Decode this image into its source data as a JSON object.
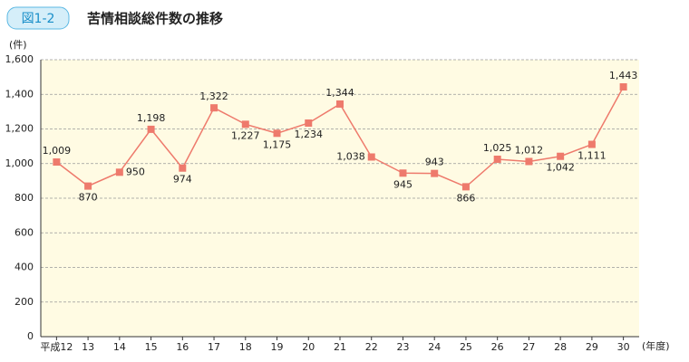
{
  "chart_data": {
    "type": "line",
    "figure_number": "図1-2",
    "title": "苦情相談総件数の推移",
    "y_label": "(件)",
    "x_label": "(年度)",
    "categories": [
      "平成12",
      "13",
      "14",
      "15",
      "16",
      "17",
      "18",
      "19",
      "20",
      "21",
      "22",
      "23",
      "24",
      "25",
      "26",
      "27",
      "28",
      "29",
      "30"
    ],
    "values": [
      1009,
      870,
      950,
      1198,
      974,
      1322,
      1227,
      1175,
      1234,
      1344,
      1038,
      945,
      943,
      866,
      1025,
      1012,
      1042,
      1111,
      1443
    ],
    "value_labels": [
      "1,009",
      "870",
      "950",
      "1,198",
      "974",
      "1,322",
      "1,227",
      "1,175",
      "1,234",
      "1,344",
      "1,038",
      "945",
      "943",
      "866",
      "1,025",
      "1,012",
      "1,042",
      "1,111",
      "1,443"
    ],
    "color": "#ee7a6c",
    "ylim": [
      0,
      1600
    ],
    "yticks": [
      0,
      200,
      400,
      600,
      800,
      {
        "value": 1000,
        "label": "1,000"
      },
      {
        "value": 1200,
        "label": "1,200"
      },
      {
        "value": 1400,
        "label": "1,400"
      },
      {
        "value": 1600,
        "label": "1,600"
      }
    ],
    "grid": true
  }
}
